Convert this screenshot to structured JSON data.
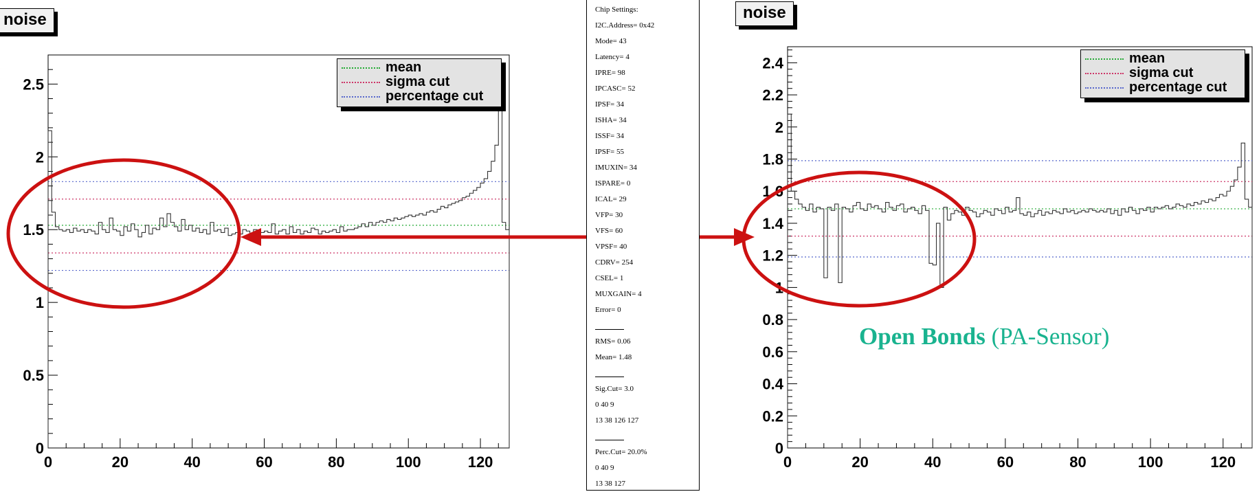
{
  "colors": {
    "mean": "#22aa33",
    "sigma_cut": "#cc3366",
    "percentage_cut": "#5566cc",
    "annotation_red": "#cc1111",
    "annotation_text": "#19b38f"
  },
  "chart_data": [
    {
      "type": "line",
      "title": "noise",
      "xlim": [
        0,
        128
      ],
      "ylim": [
        0,
        2.7
      ],
      "x_ticks": [
        "0",
        "20",
        "40",
        "60",
        "80",
        "100",
        "120"
      ],
      "y_ticks": [
        "0",
        "0.5",
        "1",
        "1.5",
        "2",
        "2.5"
      ],
      "legend": [
        "mean",
        "sigma cut",
        "percentage cut"
      ],
      "legend_position": "top-right",
      "series": [
        {
          "name": "noise",
          "step": true,
          "x": [
            0,
            1,
            2,
            3,
            4,
            5,
            6,
            7,
            8,
            9,
            10,
            11,
            12,
            13,
            14,
            15,
            16,
            17,
            18,
            19,
            20,
            21,
            22,
            23,
            24,
            25,
            26,
            27,
            28,
            29,
            30,
            31,
            32,
            33,
            34,
            35,
            36,
            37,
            38,
            39,
            40,
            41,
            42,
            43,
            44,
            45,
            46,
            47,
            48,
            49,
            50,
            51,
            52,
            53,
            54,
            55,
            56,
            57,
            58,
            59,
            60,
            61,
            62,
            63,
            64,
            65,
            66,
            67,
            68,
            69,
            70,
            71,
            72,
            73,
            74,
            75,
            76,
            77,
            78,
            79,
            80,
            81,
            82,
            83,
            84,
            85,
            86,
            87,
            88,
            89,
            90,
            91,
            92,
            93,
            94,
            95,
            96,
            97,
            98,
            99,
            100,
            101,
            102,
            103,
            104,
            105,
            106,
            107,
            108,
            109,
            110,
            111,
            112,
            113,
            114,
            115,
            116,
            117,
            118,
            119,
            120,
            121,
            122,
            123,
            124,
            125,
            126,
            127
          ],
          "y": [
            2.18,
            1.62,
            1.52,
            1.5,
            1.49,
            1.5,
            1.48,
            1.51,
            1.49,
            1.5,
            1.48,
            1.5,
            1.49,
            1.47,
            1.55,
            1.5,
            1.48,
            1.58,
            1.5,
            1.49,
            1.46,
            1.52,
            1.49,
            1.54,
            1.5,
            1.45,
            1.48,
            1.53,
            1.47,
            1.51,
            1.5,
            1.58,
            1.52,
            1.61,
            1.55,
            1.52,
            1.49,
            1.57,
            1.5,
            1.53,
            1.49,
            1.51,
            1.48,
            1.5,
            1.47,
            1.55,
            1.49,
            1.5,
            1.48,
            1.51,
            1.46,
            1.47,
            1.48,
            1.47,
            1.5,
            1.49,
            1.47,
            1.5,
            1.46,
            1.48,
            1.49,
            1.48,
            1.54,
            1.47,
            1.49,
            1.5,
            1.47,
            1.52,
            1.48,
            1.5,
            1.47,
            1.49,
            1.48,
            1.51,
            1.5,
            1.47,
            1.49,
            1.48,
            1.49,
            1.5,
            1.48,
            1.52,
            1.49,
            1.5,
            1.5,
            1.51,
            1.52,
            1.54,
            1.52,
            1.55,
            1.53,
            1.55,
            1.56,
            1.55,
            1.57,
            1.56,
            1.58,
            1.57,
            1.58,
            1.59,
            1.6,
            1.59,
            1.6,
            1.61,
            1.6,
            1.62,
            1.63,
            1.62,
            1.64,
            1.66,
            1.65,
            1.67,
            1.68,
            1.69,
            1.7,
            1.72,
            1.73,
            1.75,
            1.77,
            1.79,
            1.82,
            1.85,
            1.9,
            1.97,
            2.08,
            2.5,
            1.55,
            1.5
          ]
        },
        {
          "name": "mean",
          "hline": 1.53
        },
        {
          "name": "sigma cut",
          "hline": 1.71
        },
        {
          "name": "sigma cut",
          "hline": 1.34
        },
        {
          "name": "percentage cut",
          "hline": 1.83
        },
        {
          "name": "percentage cut",
          "hline": 1.22
        }
      ]
    },
    {
      "type": "line",
      "title": "noise",
      "xlim": [
        0,
        128
      ],
      "ylim": [
        0,
        2.5
      ],
      "x_ticks": [
        "0",
        "20",
        "40",
        "60",
        "80",
        "100",
        "120"
      ],
      "y_ticks": [
        "0",
        "0.2",
        "0.4",
        "0.6",
        "0.8",
        "1",
        "1.2",
        "1.4",
        "1.6",
        "1.8",
        "2",
        "2.2",
        "2.4"
      ],
      "legend": [
        "mean",
        "sigma cut",
        "percentage cut"
      ],
      "legend_position": "top-right",
      "series": [
        {
          "name": "noise",
          "step": true,
          "x": [
            0,
            1,
            2,
            3,
            4,
            5,
            6,
            7,
            8,
            9,
            10,
            11,
            12,
            13,
            14,
            15,
            16,
            17,
            18,
            19,
            20,
            21,
            22,
            23,
            24,
            25,
            26,
            27,
            28,
            29,
            30,
            31,
            32,
            33,
            34,
            35,
            36,
            37,
            38,
            39,
            40,
            41,
            42,
            43,
            44,
            45,
            46,
            47,
            48,
            49,
            50,
            51,
            52,
            53,
            54,
            55,
            56,
            57,
            58,
            59,
            60,
            61,
            62,
            63,
            64,
            65,
            66,
            67,
            68,
            69,
            70,
            71,
            72,
            73,
            74,
            75,
            76,
            77,
            78,
            79,
            80,
            81,
            82,
            83,
            84,
            85,
            86,
            87,
            88,
            89,
            90,
            91,
            92,
            93,
            94,
            95,
            96,
            97,
            98,
            99,
            100,
            101,
            102,
            103,
            104,
            105,
            106,
            107,
            108,
            109,
            110,
            111,
            112,
            113,
            114,
            115,
            116,
            117,
            118,
            119,
            120,
            121,
            122,
            123,
            124,
            125,
            126,
            127
          ],
          "y": [
            2.08,
            1.6,
            1.55,
            1.52,
            1.5,
            1.48,
            1.52,
            1.47,
            1.5,
            1.49,
            1.06,
            1.5,
            1.48,
            1.52,
            1.03,
            1.5,
            1.49,
            1.47,
            1.51,
            1.53,
            1.49,
            1.48,
            1.52,
            1.5,
            1.51,
            1.49,
            1.47,
            1.53,
            1.5,
            1.48,
            1.51,
            1.52,
            1.47,
            1.49,
            1.5,
            1.48,
            1.46,
            1.51,
            1.48,
            1.15,
            1.14,
            1.4,
            1.0,
            1.5,
            1.42,
            1.46,
            1.48,
            1.47,
            1.45,
            1.5,
            1.48,
            1.47,
            1.44,
            1.46,
            1.48,
            1.47,
            1.45,
            1.49,
            1.48,
            1.46,
            1.5,
            1.47,
            1.48,
            1.56,
            1.46,
            1.45,
            1.47,
            1.44,
            1.46,
            1.48,
            1.45,
            1.47,
            1.46,
            1.48,
            1.47,
            1.46,
            1.49,
            1.47,
            1.48,
            1.46,
            1.47,
            1.48,
            1.47,
            1.49,
            1.48,
            1.47,
            1.48,
            1.47,
            1.49,
            1.46,
            1.48,
            1.45,
            1.49,
            1.47,
            1.5,
            1.48,
            1.46,
            1.49,
            1.48,
            1.5,
            1.47,
            1.5,
            1.49,
            1.5,
            1.51,
            1.49,
            1.5,
            1.52,
            1.51,
            1.5,
            1.52,
            1.51,
            1.53,
            1.52,
            1.54,
            1.53,
            1.55,
            1.54,
            1.56,
            1.58,
            1.57,
            1.6,
            1.63,
            1.67,
            1.75,
            1.9,
            1.55,
            1.5
          ]
        },
        {
          "name": "mean",
          "hline": 1.49
        },
        {
          "name": "sigma cut",
          "hline": 1.66
        },
        {
          "name": "sigma cut",
          "hline": 1.32
        },
        {
          "name": "percentage cut",
          "hline": 1.79
        },
        {
          "name": "percentage cut",
          "hline": 1.19
        }
      ]
    }
  ],
  "settings_panel": {
    "lines": [
      "Chip Settings:",
      "I2C.Address= 0x42",
      "Mode= 43",
      "Latency= 4",
      "IPRE= 98",
      "IPCASC= 52",
      "IPSF= 34",
      "ISHA= 34",
      "ISSF= 34",
      "IPSF= 55",
      "IMUXIN= 34",
      "ISPARE= 0",
      "ICAL= 29",
      "VFP= 30",
      "VFS= 60",
      "VPSF= 40",
      "CDRV= 254",
      "CSEL= 1",
      "MUXGAIN= 4",
      "Error= 0",
      "",
      "RMS= 0.06",
      "Mean= 1.48",
      "",
      "Sig.Cut= 3.0",
      "0 40 9",
      "13 38 126 127",
      "",
      "Perc.Cut= 20.0%",
      "0 40 9",
      "13 38 127"
    ]
  },
  "annotation": {
    "bold": "Open Bonds",
    "normal": " (PA-Sensor)"
  }
}
